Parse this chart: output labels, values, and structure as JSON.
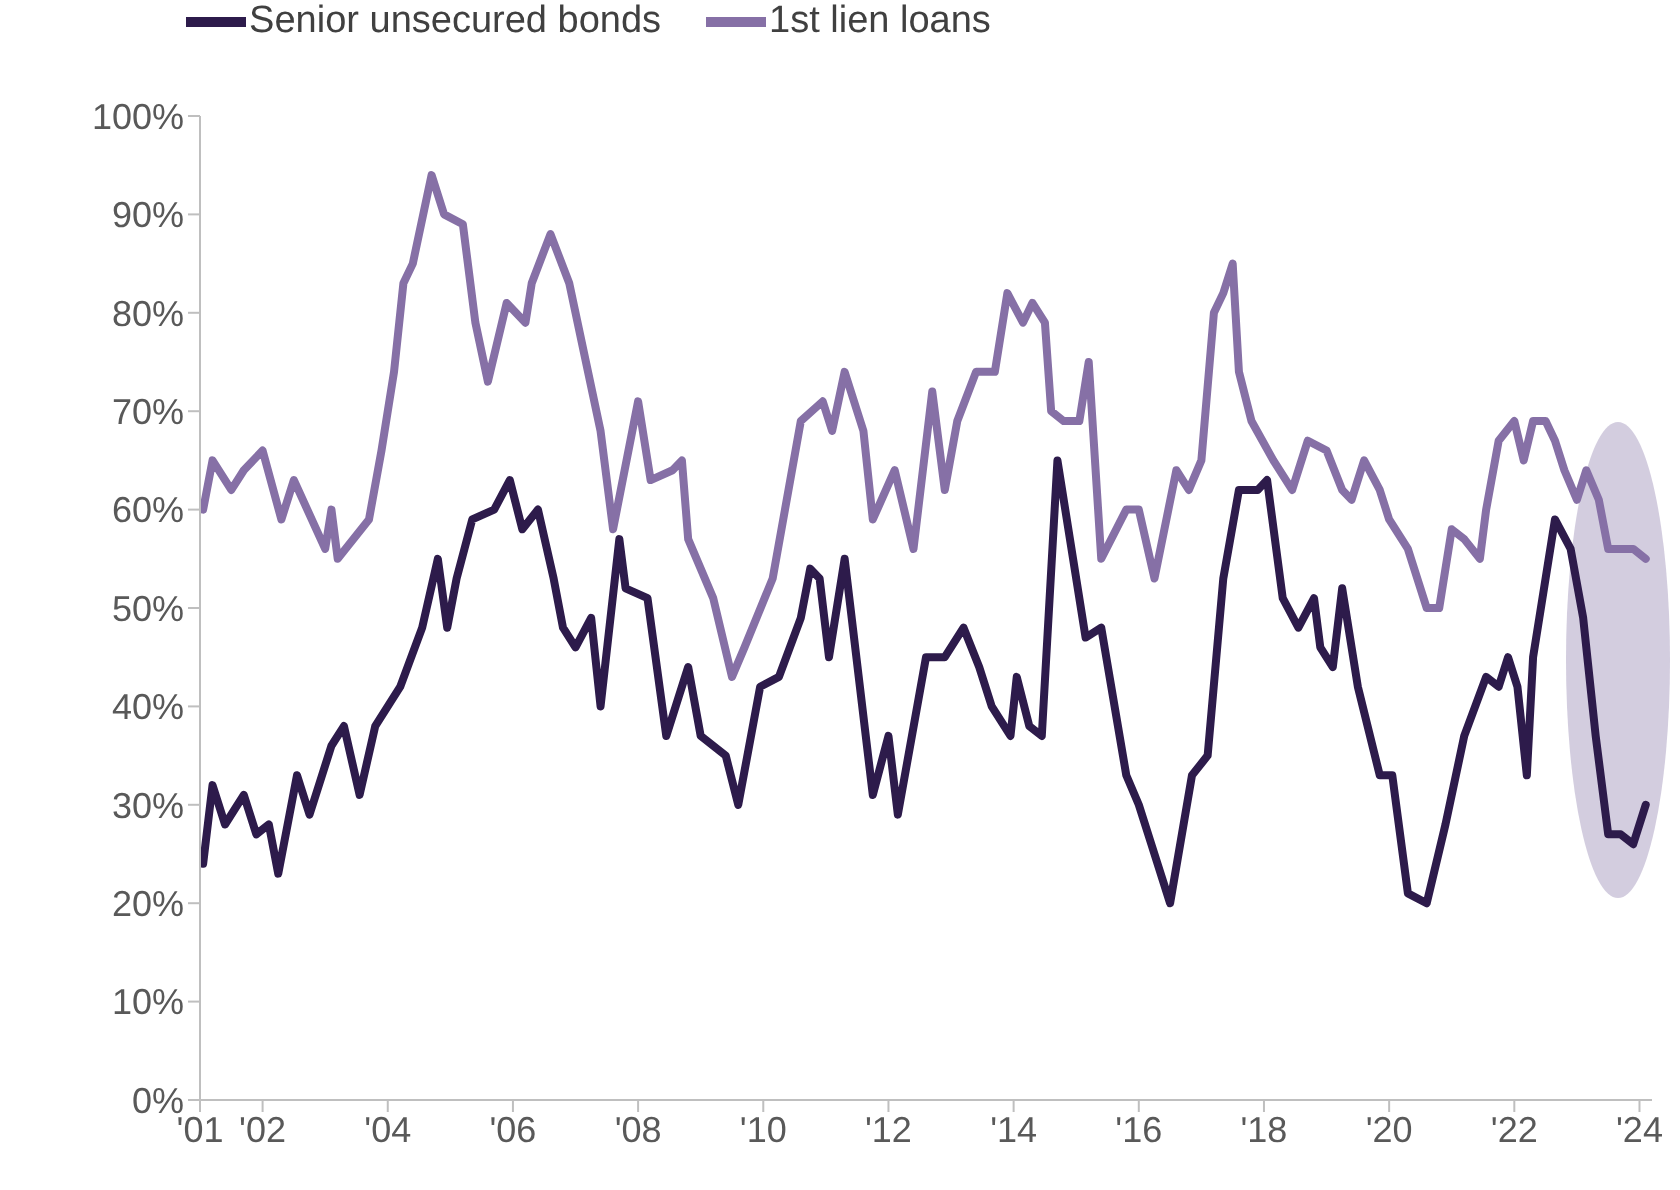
{
  "chart_data": {
    "type": "line",
    "legend": "top",
    "marker": "none",
    "line_style": "solid",
    "grid": false,
    "xlim": [
      2001,
      2024.2
    ],
    "xticks": [
      {
        "value": 2001,
        "label": "'01"
      },
      {
        "value": 2002,
        "label": "'02"
      },
      {
        "value": 2004,
        "label": "'04"
      },
      {
        "value": 2006,
        "label": "'06"
      },
      {
        "value": 2008,
        "label": "'08"
      },
      {
        "value": 2010,
        "label": "'10"
      },
      {
        "value": 2012,
        "label": "'12"
      },
      {
        "value": 2014,
        "label": "'14"
      },
      {
        "value": 2016,
        "label": "'16"
      },
      {
        "value": 2018,
        "label": "'18"
      },
      {
        "value": 2020,
        "label": "'20"
      },
      {
        "value": 2022,
        "label": "'22"
      },
      {
        "value": 2024,
        "label": "'24"
      }
    ],
    "ylim": [
      0,
      100
    ],
    "yticks": [
      {
        "value": 0,
        "label": "0%"
      },
      {
        "value": 10,
        "label": "10%"
      },
      {
        "value": 20,
        "label": "20%"
      },
      {
        "value": 30,
        "label": "30%"
      },
      {
        "value": 40,
        "label": "40%"
      },
      {
        "value": 50,
        "label": "50%"
      },
      {
        "value": 60,
        "label": "60%"
      },
      {
        "value": 70,
        "label": "70%"
      },
      {
        "value": 80,
        "label": "80%"
      },
      {
        "value": 90,
        "label": "90%"
      },
      {
        "value": 100,
        "label": "100%"
      }
    ],
    "series": [
      {
        "name": "Senior unsecured bonds",
        "color": "#2d1b4b",
        "x": [
          2001.05,
          2001.2,
          2001.4,
          2001.7,
          2001.9,
          2002.1,
          2002.25,
          2002.55,
          2002.75,
          2003.1,
          2003.3,
          2003.55,
          2003.8,
          2004.2,
          2004.55,
          2004.8,
          2004.95,
          2005.1,
          2005.35,
          2005.7,
          2005.95,
          2006.15,
          2006.4,
          2006.65,
          2006.8,
          2007,
          2007.25,
          2007.4,
          2007.7,
          2007.8,
          2008.15,
          2008.45,
          2008.65,
          2008.8,
          2009,
          2009.4,
          2009.6,
          2009.95,
          2010.25,
          2010.6,
          2010.75,
          2010.9,
          2011.05,
          2011.3,
          2011.75,
          2012,
          2012.15,
          2012.6,
          2012.9,
          2013.2,
          2013.45,
          2013.65,
          2013.95,
          2014.05,
          2014.25,
          2014.45,
          2014.7,
          2014.95,
          2015.15,
          2015.4,
          2015.8,
          2016,
          2016.2,
          2016.5,
          2016.85,
          2017.1,
          2017.35,
          2017.6,
          2017.9,
          2018.05,
          2018.3,
          2018.55,
          2018.8,
          2018.9,
          2019.1,
          2019.25,
          2019.5,
          2019.85,
          2020.05,
          2020.3,
          2020.6,
          2020.9,
          2021.2,
          2021.55,
          2021.75,
          2021.9,
          2022.05,
          2022.2,
          2022.3,
          2022.5,
          2022.65,
          2022.9,
          2023.1,
          2023.3,
          2023.5,
          2023.7,
          2023.9,
          2024.1
        ],
        "values": [
          24,
          32,
          28,
          31,
          27,
          28,
          23,
          33,
          29,
          36,
          38,
          31,
          38,
          42,
          48,
          55,
          48,
          53,
          59,
          60,
          63,
          58,
          60,
          53,
          48,
          46,
          49,
          40,
          57,
          52,
          51,
          37,
          41,
          44,
          37,
          35,
          30,
          42,
          43,
          49,
          54,
          53,
          45,
          55,
          31,
          37,
          29,
          45,
          45,
          48,
          44,
          40,
          37,
          43,
          38,
          37,
          65,
          55,
          47,
          48,
          33,
          30,
          26,
          20,
          33,
          35,
          53,
          62,
          62,
          63,
          51,
          48,
          51,
          46,
          44,
          52,
          42,
          33,
          33,
          21,
          20,
          28,
          37,
          43,
          42,
          45,
          42,
          33,
          45,
          53,
          59,
          56,
          49,
          37,
          27,
          27,
          26,
          30
        ]
      },
      {
        "name": "1st lien loans",
        "color": "#8670a6",
        "x": [
          2001.05,
          2001.2,
          2001.5,
          2001.7,
          2002,
          2002.3,
          2002.5,
          2003,
          2003.1,
          2003.2,
          2003.7,
          2003.9,
          2004.1,
          2004.25,
          2004.4,
          2004.7,
          2004.9,
          2005.2,
          2005.4,
          2005.6,
          2005.9,
          2006.2,
          2006.3,
          2006.6,
          2006.9,
          2007.1,
          2007.4,
          2007.6,
          2008,
          2008.2,
          2008.55,
          2008.7,
          2008.8,
          2009.2,
          2009.5,
          2009.7,
          2010.15,
          2010.6,
          2010.95,
          2011.1,
          2011.3,
          2011.6,
          2011.75,
          2012.1,
          2012.4,
          2012.7,
          2012.9,
          2013.1,
          2013.4,
          2013.7,
          2013.9,
          2014.15,
          2014.3,
          2014.5,
          2014.6,
          2014.8,
          2015.05,
          2015.2,
          2015.4,
          2015.8,
          2016,
          2016.25,
          2016.6,
          2016.8,
          2017,
          2017.2,
          2017.35,
          2017.5,
          2017.6,
          2017.8,
          2018.15,
          2018.45,
          2018.7,
          2019,
          2019.25,
          2019.4,
          2019.6,
          2019.85,
          2020,
          2020.3,
          2020.6,
          2020.8,
          2021,
          2021.2,
          2021.45,
          2021.55,
          2021.75,
          2022,
          2022.15,
          2022.3,
          2022.5,
          2022.65,
          2022.8,
          2023,
          2023.15,
          2023.35,
          2023.5,
          2023.9,
          2024.1
        ],
        "values": [
          60,
          65,
          62,
          64,
          66,
          59,
          63,
          56,
          60,
          55,
          59,
          66,
          74,
          83,
          85,
          94,
          90,
          89,
          79,
          73,
          81,
          79,
          83,
          88,
          83,
          77,
          68,
          58,
          71,
          63,
          64,
          65,
          57,
          51,
          43,
          46,
          53,
          69,
          71,
          68,
          74,
          68,
          59,
          64,
          56,
          72,
          62,
          69,
          74,
          74,
          82,
          79,
          81,
          79,
          70,
          69,
          69,
          75,
          55,
          60,
          60,
          53,
          64,
          62,
          65,
          80,
          82,
          85,
          74,
          69,
          65,
          62,
          67,
          66,
          62,
          61,
          65,
          62,
          59,
          56,
          50,
          50,
          58,
          57,
          55,
          60,
          67,
          69,
          65,
          69,
          69,
          67,
          64,
          61,
          64,
          61,
          56,
          56,
          55
        ]
      }
    ]
  }
}
